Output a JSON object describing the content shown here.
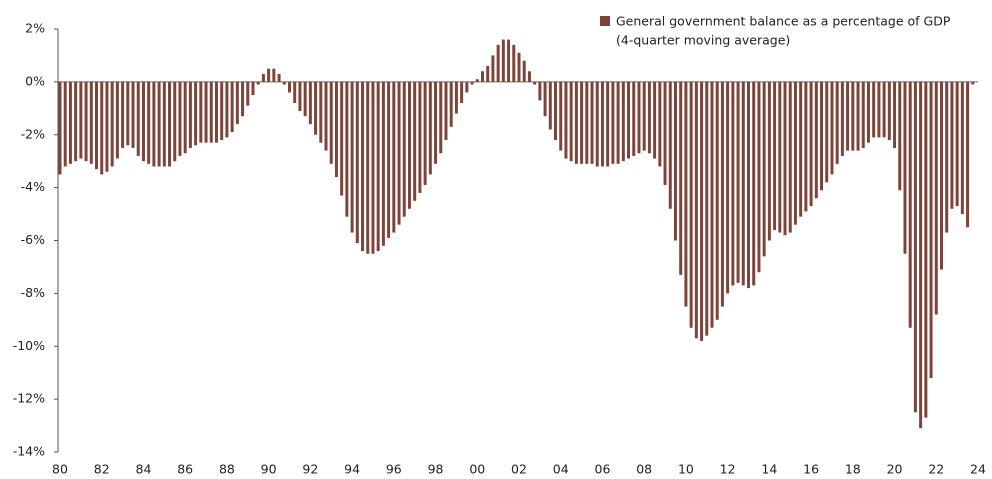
{
  "chart_data": {
    "type": "bar",
    "series": [
      {
        "name": "General government balance as a percentage of GDP",
        "color": "#7d4539",
        "values": [
          -3.5,
          -3.2,
          -3.1,
          -3.0,
          -2.9,
          -3.0,
          -3.1,
          -3.3,
          -3.5,
          -3.4,
          -3.2,
          -2.9,
          -2.5,
          -2.4,
          -2.5,
          -2.8,
          -3.0,
          -3.1,
          -3.2,
          -3.2,
          -3.2,
          -3.2,
          -3.0,
          -2.8,
          -2.7,
          -2.5,
          -2.4,
          -2.3,
          -2.3,
          -2.3,
          -2.3,
          -2.2,
          -2.1,
          -1.9,
          -1.6,
          -1.3,
          -0.9,
          -0.5,
          -0.1,
          0.3,
          0.5,
          0.5,
          0.3,
          -0.1,
          -0.4,
          -0.8,
          -1.1,
          -1.3,
          -1.6,
          -2.0,
          -2.3,
          -2.6,
          -3.1,
          -3.6,
          -4.3,
          -5.1,
          -5.7,
          -6.1,
          -6.4,
          -6.5,
          -6.5,
          -6.4,
          -6.2,
          -5.9,
          -5.7,
          -5.4,
          -5.1,
          -4.8,
          -4.5,
          -4.2,
          -3.9,
          -3.5,
          -3.1,
          -2.7,
          -2.2,
          -1.7,
          -1.2,
          -0.8,
          -0.4,
          -0.1,
          0.1,
          0.4,
          0.6,
          1.0,
          1.4,
          1.6,
          1.6,
          1.4,
          1.1,
          0.8,
          0.4,
          -0.1,
          -0.7,
          -1.3,
          -1.8,
          -2.2,
          -2.6,
          -2.9,
          -3.0,
          -3.1,
          -3.1,
          -3.1,
          -3.1,
          -3.2,
          -3.2,
          -3.2,
          -3.1,
          -3.1,
          -3.0,
          -2.9,
          -2.8,
          -2.7,
          -2.6,
          -2.7,
          -2.9,
          -3.2,
          -3.9,
          -4.8,
          -6.0,
          -7.3,
          -8.5,
          -9.3,
          -9.7,
          -9.8,
          -9.6,
          -9.3,
          -9.0,
          -8.5,
          -8.0,
          -7.7,
          -7.6,
          -7.7,
          -7.8,
          -7.7,
          -7.2,
          -6.6,
          -6.0,
          -5.6,
          -5.7,
          -5.8,
          -5.7,
          -5.4,
          -5.1,
          -4.9,
          -4.7,
          -4.4,
          -4.1,
          -3.8,
          -3.5,
          -3.1,
          -2.8,
          -2.6,
          -2.6,
          -2.6,
          -2.5,
          -2.3,
          -2.1,
          -2.1,
          -2.1,
          -2.2,
          -2.5,
          -4.1,
          -6.5,
          -9.3,
          -12.5,
          -13.1,
          -12.7,
          -11.2,
          -8.8,
          -7.1,
          -5.7,
          -4.8,
          -4.7,
          -5.0,
          -5.5,
          -0.1
        ]
      }
    ],
    "legend_note": "(4-quarter moving average)",
    "x": [
      1980,
      1980.25,
      1980.5,
      1980.75,
      1981,
      1981.25,
      1981.5,
      1981.75,
      1982,
      1982.25,
      1982.5,
      1982.75,
      1983,
      1983.25,
      1983.5,
      1983.75,
      1984,
      1984.25,
      1984.5,
      1984.75,
      1985,
      1985.25,
      1985.5,
      1985.75,
      1986,
      1986.25,
      1986.5,
      1986.75,
      1987,
      1987.25,
      1987.5,
      1987.75,
      1988,
      1988.25,
      1988.5,
      1988.75,
      1989,
      1989.25,
      1989.5,
      1989.75,
      1990,
      1990.25,
      1990.5,
      1990.75,
      1991,
      1991.25,
      1991.5,
      1991.75,
      1992,
      1992.25,
      1992.5,
      1992.75,
      1993,
      1993.25,
      1993.5,
      1993.75,
      1994,
      1994.25,
      1994.5,
      1994.75,
      1995,
      1995.25,
      1995.5,
      1995.75,
      1996,
      1996.25,
      1996.5,
      1996.75,
      1997,
      1997.25,
      1997.5,
      1997.75,
      1998,
      1998.25,
      1998.5,
      1998.75,
      1999,
      1999.25,
      1999.5,
      1999.75,
      2000,
      2000.25,
      2000.5,
      2000.75,
      2001,
      2001.25,
      2001.5,
      2001.75,
      2002,
      2002.25,
      2002.5,
      2002.75,
      2003,
      2003.25,
      2003.5,
      2003.75,
      2004,
      2004.25,
      2004.5,
      2004.75,
      2005,
      2005.25,
      2005.5,
      2005.75,
      2006,
      2006.25,
      2006.5,
      2006.75,
      2007,
      2007.25,
      2007.5,
      2007.75,
      2008,
      2008.25,
      2008.5,
      2008.75,
      2009,
      2009.25,
      2009.5,
      2009.75,
      2010,
      2010.25,
      2010.5,
      2010.75,
      2011,
      2011.25,
      2011.5,
      2011.75,
      2012,
      2012.25,
      2012.5,
      2012.75,
      2013,
      2013.25,
      2013.5,
      2013.75,
      2014,
      2014.25,
      2014.5,
      2014.75,
      2015,
      2015.25,
      2015.5,
      2015.75,
      2016,
      2016.25,
      2016.5,
      2016.75,
      2017,
      2017.25,
      2017.5,
      2017.75,
      2018,
      2018.25,
      2018.5,
      2018.75,
      2019,
      2019.25,
      2019.5,
      2019.75,
      2020,
      2020.25,
      2020.5,
      2020.75,
      2021,
      2021.25,
      2021.5,
      2021.75,
      2022,
      2022.25,
      2022.5,
      2022.75,
      2023,
      2023.25,
      2023.5,
      2023.75
    ],
    "xlim": [
      1980,
      2024
    ],
    "xticks": [
      {
        "value": 1980,
        "label": "80"
      },
      {
        "value": 1982,
        "label": "82"
      },
      {
        "value": 1984,
        "label": "84"
      },
      {
        "value": 1986,
        "label": "86"
      },
      {
        "value": 1988,
        "label": "88"
      },
      {
        "value": 1990,
        "label": "90"
      },
      {
        "value": 1992,
        "label": "92"
      },
      {
        "value": 1994,
        "label": "94"
      },
      {
        "value": 1996,
        "label": "96"
      },
      {
        "value": 1998,
        "label": "98"
      },
      {
        "value": 2000,
        "label": "00"
      },
      {
        "value": 2002,
        "label": "02"
      },
      {
        "value": 2004,
        "label": "04"
      },
      {
        "value": 2006,
        "label": "06"
      },
      {
        "value": 2008,
        "label": "08"
      },
      {
        "value": 2010,
        "label": "10"
      },
      {
        "value": 2012,
        "label": "12"
      },
      {
        "value": 2014,
        "label": "14"
      },
      {
        "value": 2016,
        "label": "16"
      },
      {
        "value": 2018,
        "label": "18"
      },
      {
        "value": 2020,
        "label": "20"
      },
      {
        "value": 2022,
        "label": "22"
      },
      {
        "value": 2024,
        "label": "24"
      }
    ],
    "ylim": [
      -14,
      2
    ],
    "yticks": [
      {
        "value": 2,
        "label": "2%"
      },
      {
        "value": 0,
        "label": "0%"
      },
      {
        "value": -2,
        "label": "-2%"
      },
      {
        "value": -4,
        "label": "-4%"
      },
      {
        "value": -6,
        "label": "-6%"
      },
      {
        "value": -8,
        "label": "-8%"
      },
      {
        "value": -10,
        "label": "-10%"
      },
      {
        "value": -12,
        "label": "-12%"
      },
      {
        "value": -14,
        "label": "-14%"
      }
    ],
    "legend_position": "upper right"
  }
}
